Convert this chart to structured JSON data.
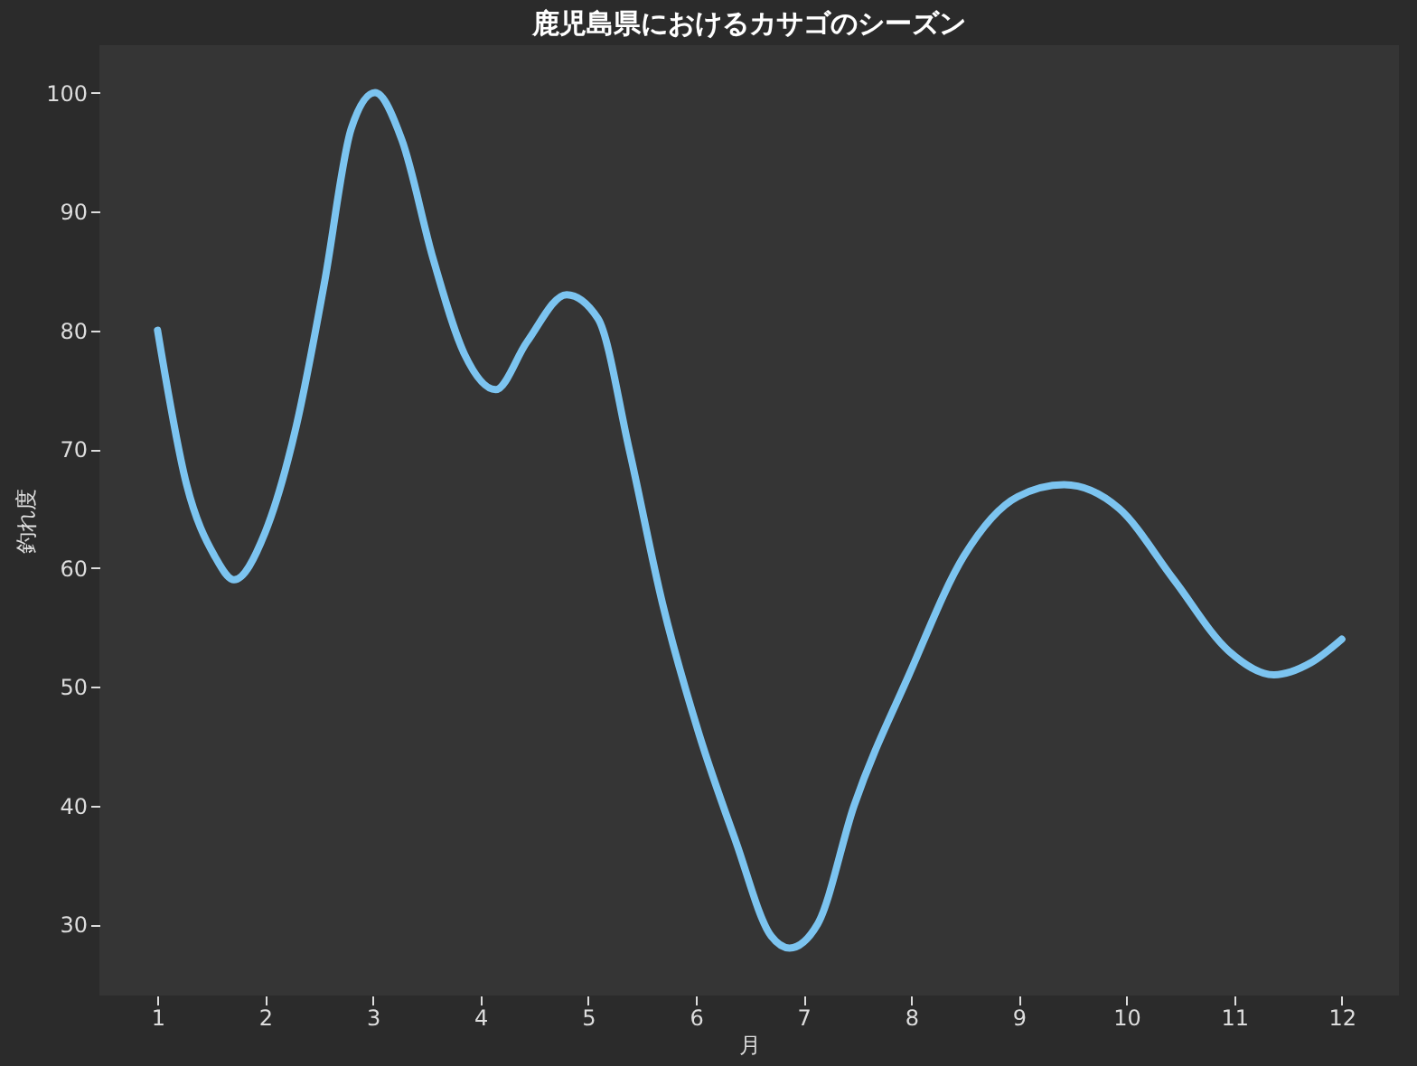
{
  "chart_data": {
    "type": "line",
    "title": "鹿児島県におけるカサゴのシーズン",
    "xlabel": "月",
    "ylabel": "釣れ度",
    "x": [
      1,
      1.27,
      1.53,
      1.71,
      2.0,
      2.29,
      2.55,
      2.8,
      3.02,
      3.27,
      3.56,
      3.85,
      4.14,
      4.43,
      4.8,
      5.09,
      5.38,
      5.69,
      6.03,
      6.37,
      6.7,
      6.87,
      7.13,
      7.47,
      7.98,
      8.49,
      8.99,
      9.42,
      9.93,
      10.44,
      10.95,
      11.37,
      11.71,
      12
    ],
    "series": [
      {
        "color": "#7cc4f0",
        "values": [
          80,
          67,
          61,
          59,
          63,
          72,
          84,
          97,
          100,
          96,
          86,
          78,
          75,
          79,
          83,
          81,
          70,
          57,
          46,
          37,
          29,
          28,
          30,
          40,
          51,
          61,
          66,
          67,
          65,
          59,
          53,
          51,
          52,
          54
        ]
      }
    ],
    "xlim": [
      0.46,
      12.53
    ],
    "xticks": [
      1,
      2,
      3,
      4,
      5,
      6,
      7,
      8,
      9,
      10,
      11,
      12
    ],
    "ylim": [
      24,
      104
    ],
    "yticks": [
      30,
      40,
      50,
      60,
      70,
      80,
      90,
      100
    ],
    "grid": false,
    "marker": "none",
    "line_style": "solid"
  }
}
